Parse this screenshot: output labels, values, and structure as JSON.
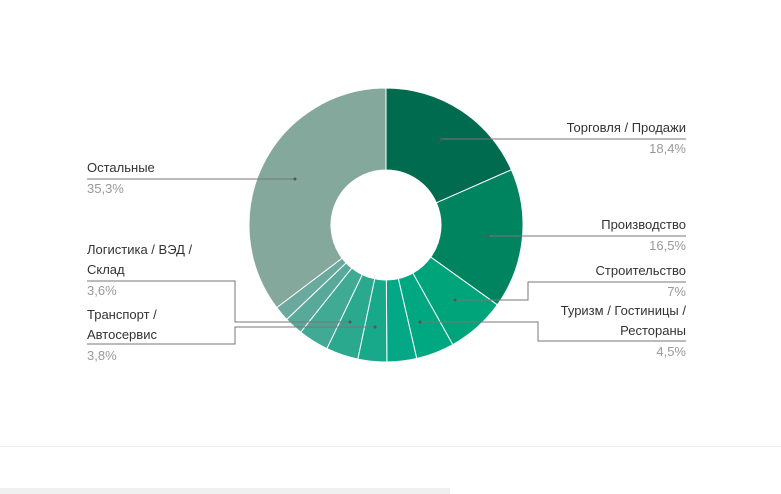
{
  "chart_data": {
    "type": "donut",
    "categories": [
      "Торговля / Продажи",
      "Производство",
      "Строительство",
      "Туризм / Гостиницы / Рестораны",
      null,
      null,
      "Транспорт / Автосервис",
      "Логистика / ВЭД / Склад",
      null,
      null,
      "Остальные"
    ],
    "values": [
      18.4,
      16.5,
      7,
      4.5,
      3.5,
      3.4,
      3.8,
      3.6,
      2.2,
      1.8,
      35.3
    ],
    "value_labels": [
      "18,4%",
      "16,5%",
      "7%",
      "4,5%",
      null,
      null,
      "3,8%",
      "3,6%",
      null,
      null,
      "35,3%"
    ],
    "colors": [
      "#006b4f",
      "#00845f",
      "#00a47a",
      "#00a882",
      "#04a886",
      "#17a98a",
      "#2aa98f",
      "#40aa95",
      "#57aa9a",
      "#6aaa9e",
      "#84a89b"
    ]
  }
}
